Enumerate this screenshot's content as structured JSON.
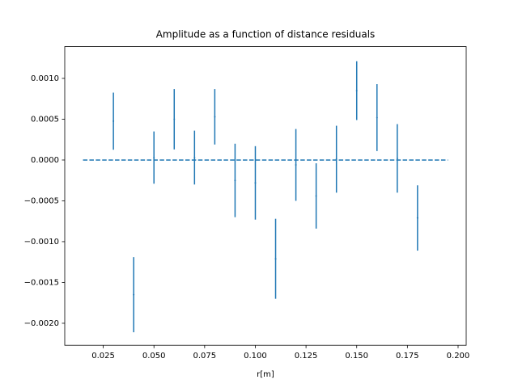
{
  "chart_data": {
    "type": "errorbar",
    "title": "Amplitude as a function of distance residuals",
    "xlabel": "r[m]",
    "x": [
      0.03,
      0.04,
      0.05,
      0.06,
      0.07,
      0.08,
      0.09,
      0.1,
      0.11,
      0.12,
      0.13,
      0.14,
      0.15,
      0.16,
      0.17,
      0.18
    ],
    "values": [
      0.000476,
      -0.00165,
      3e-05,
      0.0005,
      3e-05,
      0.00053,
      -0.00025,
      -0.00028,
      -0.00121,
      -6e-05,
      -0.00044,
      1e-05,
      0.00085,
      0.00052,
      2e-05,
      -0.00071
    ],
    "errors": [
      0.00035,
      0.00046,
      0.00032,
      0.00037,
      0.00033,
      0.00034,
      0.00045,
      0.00045,
      0.00049,
      0.00044,
      0.0004,
      0.00041,
      0.00036,
      0.00041,
      0.00042,
      0.0004
    ],
    "color": "#1f77b4",
    "reference_line": {
      "x": [
        0.015,
        0.195
      ],
      "y": 0,
      "dash": true
    },
    "xlim": [
      0.006,
      0.204
    ],
    "ylim": [
      -0.00227,
      0.00139
    ],
    "xticks": [
      {
        "value": 0.025,
        "label": "0.025"
      },
      {
        "value": 0.05,
        "label": "0.050"
      },
      {
        "value": 0.075,
        "label": "0.075"
      },
      {
        "value": 0.1,
        "label": "0.100"
      },
      {
        "value": 0.125,
        "label": "0.125"
      },
      {
        "value": 0.15,
        "label": "0.150"
      },
      {
        "value": 0.175,
        "label": "0.175"
      },
      {
        "value": 0.2,
        "label": "0.200"
      }
    ],
    "yticks": [
      {
        "value": -0.002,
        "label": "−0.0020"
      },
      {
        "value": -0.0015,
        "label": "−0.0015"
      },
      {
        "value": -0.001,
        "label": "−0.0010"
      },
      {
        "value": -0.0005,
        "label": "−0.0005"
      },
      {
        "value": 0,
        "label": "0.0000"
      },
      {
        "value": 0.0005,
        "label": "0.0005"
      },
      {
        "value": 0.001,
        "label": "0.0010"
      }
    ]
  }
}
